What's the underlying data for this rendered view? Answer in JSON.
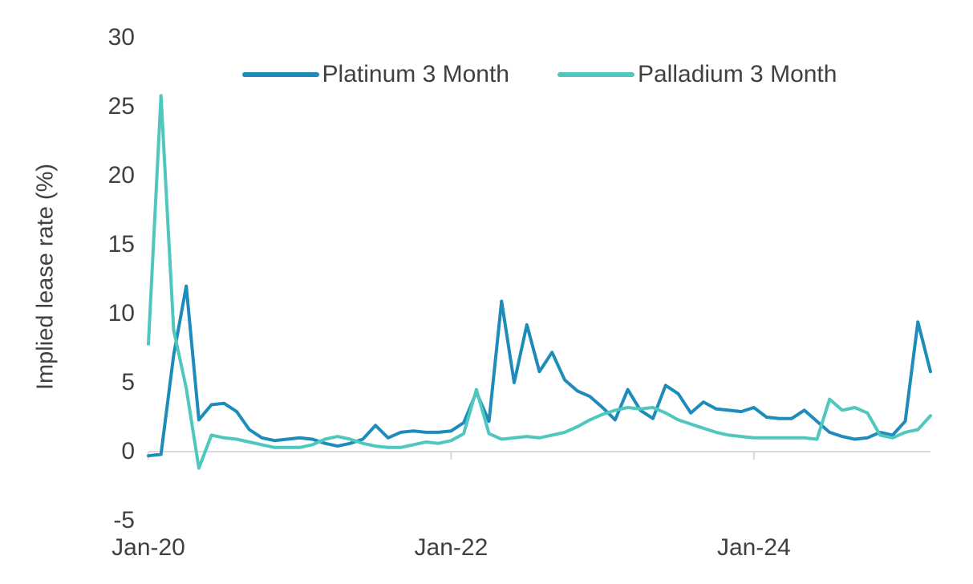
{
  "chart_data": {
    "type": "line",
    "title": "",
    "xlabel": "",
    "ylabel": "Implied lease rate (%)",
    "ylim": [
      -5,
      30
    ],
    "yticks": [
      30,
      25,
      20,
      15,
      10,
      5,
      0,
      -5
    ],
    "x_start": "2020-01",
    "x_interval": "monthly",
    "x_end": "2025-03",
    "grid": "zero-line-only",
    "legend_position": "top",
    "colors": {
      "axis_text": "#404040",
      "axis_line": "#d9d9d9",
      "background": "#ffffff"
    },
    "xticks": [
      {
        "label": "Jan-20",
        "month_index": 0
      },
      {
        "label": "Jan-22",
        "month_index": 24
      },
      {
        "label": "Jan-24",
        "month_index": 48
      }
    ],
    "series": [
      {
        "id": "platinum",
        "name": "Platinum 3 Month",
        "color": "#1d8cba",
        "values": [
          -0.3,
          -0.2,
          7.0,
          12.0,
          2.3,
          3.4,
          3.5,
          2.9,
          1.6,
          1.0,
          0.8,
          0.9,
          1.0,
          0.9,
          0.6,
          0.4,
          0.6,
          0.9,
          1.9,
          1.0,
          1.4,
          1.5,
          1.4,
          1.4,
          1.5,
          2.1,
          4.3,
          2.2,
          10.9,
          5.0,
          9.2,
          5.8,
          7.2,
          5.2,
          4.4,
          4.0,
          3.2,
          2.3,
          4.5,
          3.0,
          2.4,
          4.8,
          4.2,
          2.8,
          3.6,
          3.1,
          3.0,
          2.9,
          3.2,
          2.5,
          2.4,
          2.4,
          3.0,
          2.2,
          1.4,
          1.1,
          0.9,
          1.0,
          1.4,
          1.2,
          2.2,
          9.4,
          5.8
        ]
      },
      {
        "id": "palladium",
        "name": "Palladium 3 Month",
        "color": "#4fc7be",
        "values": [
          7.8,
          25.8,
          8.8,
          4.6,
          -1.2,
          1.2,
          1.0,
          0.9,
          0.7,
          0.5,
          0.3,
          0.3,
          0.3,
          0.5,
          0.9,
          1.1,
          0.9,
          0.6,
          0.4,
          0.3,
          0.3,
          0.5,
          0.7,
          0.6,
          0.8,
          1.3,
          4.5,
          1.3,
          0.9,
          1.0,
          1.1,
          1.0,
          1.2,
          1.4,
          1.8,
          2.3,
          2.7,
          3.0,
          3.2,
          3.1,
          3.2,
          2.8,
          2.3,
          2.0,
          1.7,
          1.4,
          1.2,
          1.1,
          1.0,
          1.0,
          1.0,
          1.0,
          1.0,
          0.9,
          3.8,
          3.0,
          3.2,
          2.8,
          1.2,
          1.0,
          1.4,
          1.6,
          2.6
        ]
      }
    ]
  }
}
